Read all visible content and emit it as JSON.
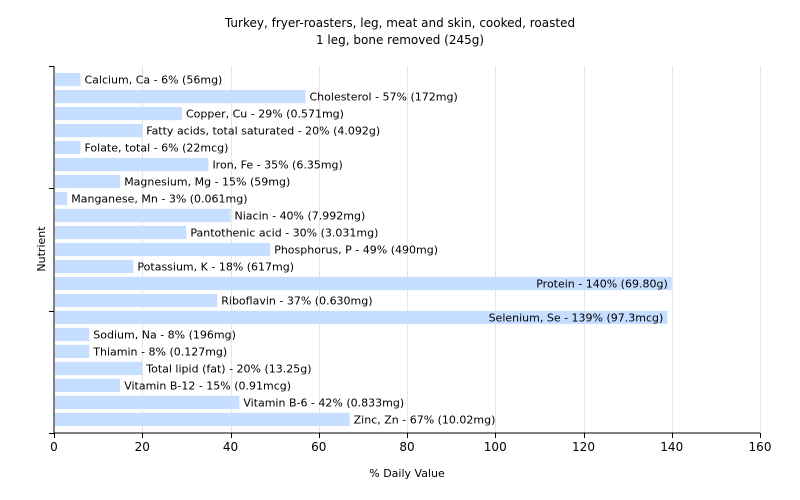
{
  "chart_data": {
    "type": "bar",
    "orientation": "horizontal",
    "title": "Turkey, fryer-roasters, leg, meat and skin, cooked, roasted",
    "subtitle": "1 leg, bone removed (245g)",
    "xlabel": "% Daily Value",
    "ylabel": "Nutrient",
    "xlim": [
      0,
      160
    ],
    "xticks": [
      0,
      20,
      40,
      60,
      80,
      100,
      120,
      140,
      160
    ],
    "grid": true,
    "bar_color": "#c6deff",
    "grid_color": "#e6e6e6",
    "categories": [
      "Calcium, Ca",
      "Cholesterol",
      "Copper, Cu",
      "Fatty acids, total saturated",
      "Folate, total",
      "Iron, Fe",
      "Magnesium, Mg",
      "Manganese, Mn",
      "Niacin",
      "Pantothenic acid",
      "Phosphorus, P",
      "Potassium, K",
      "Protein",
      "Riboflavin",
      "Selenium, Se",
      "Sodium, Na",
      "Thiamin",
      "Total lipid (fat)",
      "Vitamin B-12",
      "Vitamin B-6",
      "Zinc, Zn"
    ],
    "values": [
      6,
      57,
      29,
      20,
      6,
      35,
      15,
      3,
      40,
      30,
      49,
      18,
      140,
      37,
      139,
      8,
      8,
      20,
      15,
      42,
      67
    ],
    "labels": [
      "Calcium, Ca - 6% (56mg)",
      "Cholesterol - 57% (172mg)",
      "Copper, Cu - 29% (0.571mg)",
      "Fatty acids, total saturated - 20% (4.092g)",
      "Folate, total - 6% (22mcg)",
      "Iron, Fe - 35% (6.35mg)",
      "Magnesium, Mg - 15% (59mg)",
      "Manganese, Mn - 3% (0.061mg)",
      "Niacin - 40% (7.992mg)",
      "Pantothenic acid - 30% (3.031mg)",
      "Phosphorus, P - 49% (490mg)",
      "Potassium, K - 18% (617mg)",
      "Protein - 140% (69.80g)",
      "Riboflavin - 37% (0.630mg)",
      "Selenium, Se - 139% (97.3mcg)",
      "Sodium, Na - 8% (196mg)",
      "Thiamin - 8% (0.127mg)",
      "Total lipid (fat) - 20% (13.25g)",
      "Vitamin B-12 - 15% (0.91mcg)",
      "Vitamin B-6 - 42% (0.833mg)",
      "Zinc, Zn - 67% (10.02mg)"
    ]
  }
}
